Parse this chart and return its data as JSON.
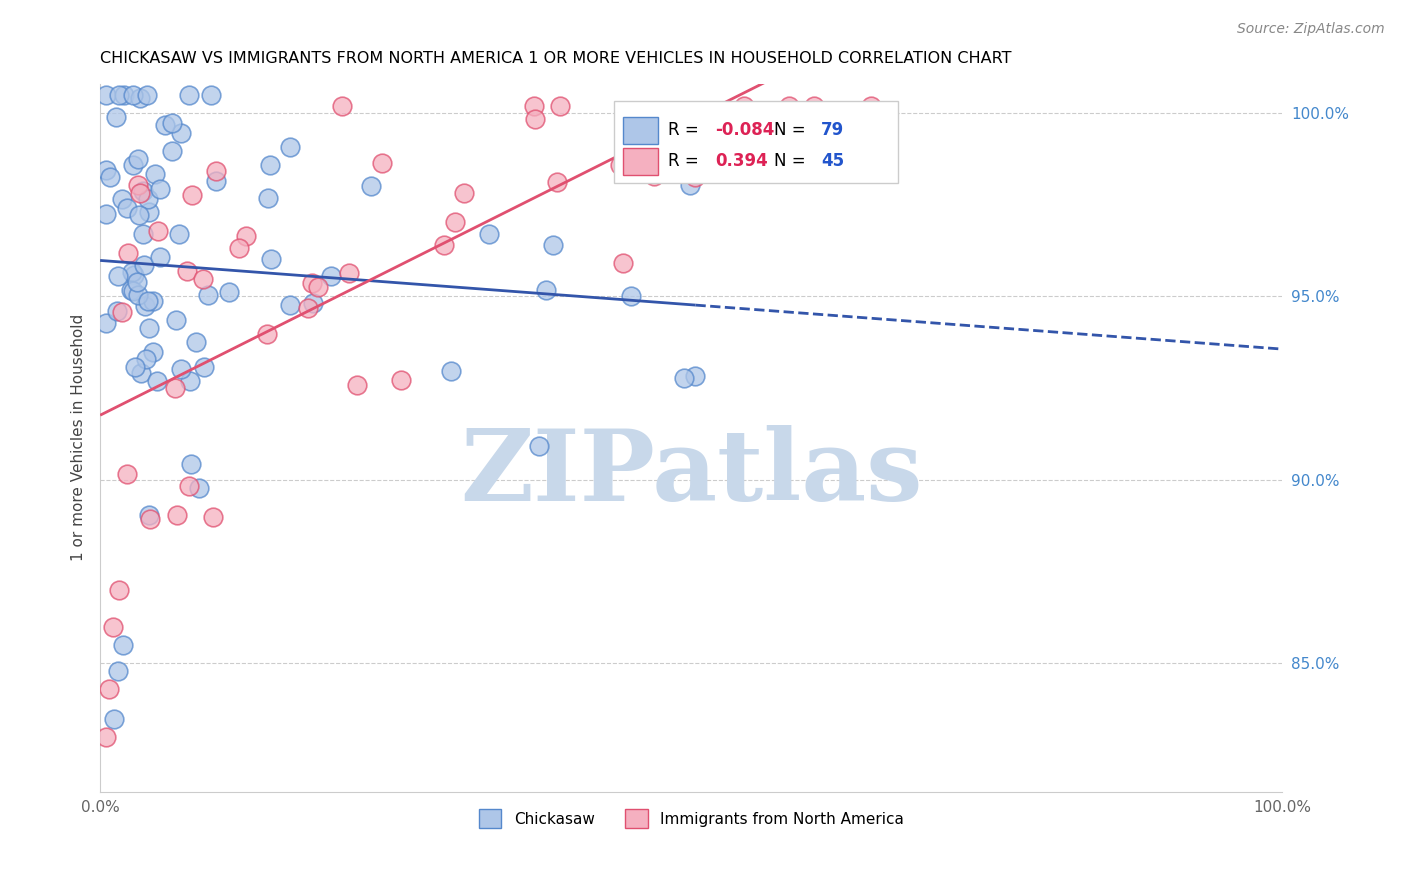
{
  "title": "CHICKASAW VS IMMIGRANTS FROM NORTH AMERICA 1 OR MORE VEHICLES IN HOUSEHOLD CORRELATION CHART",
  "source": "Source: ZipAtlas.com",
  "ylabel": "1 or more Vehicles in Household",
  "xlim": [
    0.0,
    1.0
  ],
  "ylim": [
    0.815,
    1.008
  ],
  "yticks": [
    0.85,
    0.9,
    0.95,
    1.0
  ],
  "ytick_labels": [
    "85.0%",
    "90.0%",
    "95.0%",
    "100.0%"
  ],
  "xticks": [
    0.0,
    0.2,
    0.4,
    0.6,
    0.8,
    1.0
  ],
  "xtick_labels": [
    "0.0%",
    "",
    "",
    "",
    "",
    "100.0%"
  ],
  "chickasaw_color": "#aec6e8",
  "immigrant_color": "#f5b0c0",
  "chickasaw_edge": "#5588cc",
  "immigrant_edge": "#e05070",
  "trendline_blue": "#3355aa",
  "trendline_pink": "#e05070",
  "R_chickasaw": -0.084,
  "N_chickasaw": 79,
  "R_immigrant": 0.394,
  "N_immigrant": 45,
  "legend_R_color": "#dd2255",
  "legend_N_color": "#2255cc",
  "background_color": "#ffffff",
  "grid_color": "#cccccc",
  "watermark_color": "#c8d8ea",
  "ytick_color": "#4488cc",
  "xtick_color": "#666666"
}
